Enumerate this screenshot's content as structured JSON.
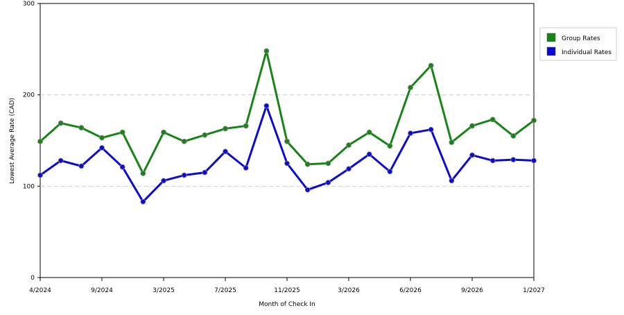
{
  "chart_data": {
    "type": "line",
    "x_label": "Month of Check In",
    "y_label": "Lowest Average Rate (CAD)",
    "categories": [
      "4/2024",
      null,
      null,
      "9/2024",
      null,
      null,
      "3/2025",
      null,
      null,
      "7/2025",
      null,
      null,
      "11/2025",
      null,
      null,
      "3/2026",
      null,
      null,
      "6/2026",
      null,
      null,
      "9/2026",
      null,
      null,
      "1/2027"
    ],
    "series": [
      {
        "name": "Group Rates",
        "color": "#168416",
        "values": [
          149,
          169,
          164,
          153,
          159,
          114,
          159,
          149,
          156,
          163,
          166,
          248,
          149,
          124,
          125,
          145,
          159,
          144,
          208,
          232,
          148,
          166,
          173,
          155,
          172
        ]
      },
      {
        "name": "Individual Rates",
        "color": "#0a0ad2",
        "values": [
          112,
          128,
          122,
          142,
          121,
          83,
          106,
          112,
          115,
          138,
          120,
          188,
          125,
          96,
          104,
          119,
          135,
          116,
          158,
          162,
          106,
          134,
          128,
          129,
          128
        ]
      }
    ],
    "ylim": [
      0,
      300
    ],
    "yticks": [
      0,
      100,
      200,
      300
    ],
    "grid": true,
    "legend": "right"
  }
}
